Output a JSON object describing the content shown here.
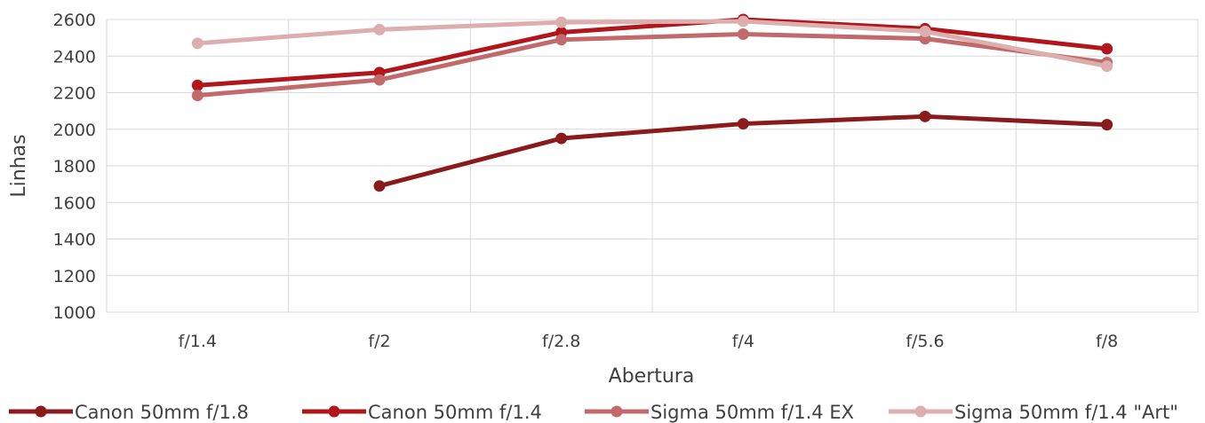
{
  "chart_data": {
    "type": "line",
    "title": "",
    "xlabel": "Abertura",
    "ylabel": "Linhas",
    "categories": [
      "f/1.4",
      "f/2",
      "f/2.8",
      "f/4",
      "f/5.6",
      "f/8"
    ],
    "ylim": [
      1000,
      2600
    ],
    "yticks": [
      1000,
      1200,
      1400,
      1600,
      1800,
      2000,
      2200,
      2400,
      2600
    ],
    "grid": true,
    "legend_position": "bottom",
    "series": [
      {
        "name": "Canon 50mm f/1.8",
        "color": "#8b1a1a",
        "values": [
          null,
          1690,
          1950,
          2030,
          2070,
          2025
        ]
      },
      {
        "name": "Canon 50mm f/1.4",
        "color": "#b0161c",
        "values": [
          2240,
          2310,
          2530,
          2600,
          2550,
          2440
        ]
      },
      {
        "name": "Sigma 50mm f/1.4 EX",
        "color": "#c2696b",
        "values": [
          2185,
          2270,
          2490,
          2520,
          2495,
          2365
        ]
      },
      {
        "name": "Sigma 50mm f/1.4 \"Art\"",
        "color": "#dcaeae",
        "values": [
          2470,
          2545,
          2585,
          2590,
          2535,
          2345
        ]
      }
    ]
  }
}
